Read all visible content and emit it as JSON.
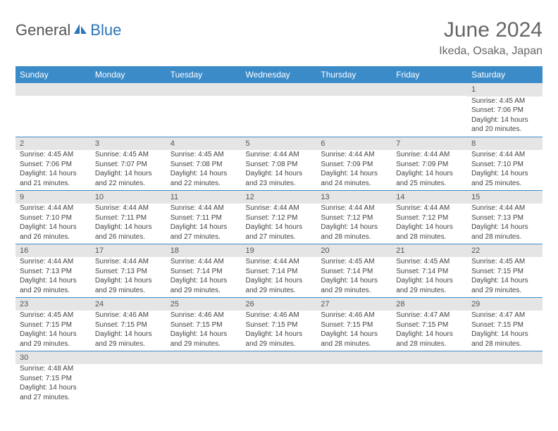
{
  "logo": {
    "part1": "General",
    "part2": "Blue"
  },
  "title": "June 2024",
  "location": "Ikeda, Osaka, Japan",
  "header_bg": "#3b8bc9",
  "daynum_bg": "#e5e5e5",
  "border_color": "#3b8bc9",
  "weekdays": [
    "Sunday",
    "Monday",
    "Tuesday",
    "Wednesday",
    "Thursday",
    "Friday",
    "Saturday"
  ],
  "weeks": [
    [
      null,
      null,
      null,
      null,
      null,
      null,
      {
        "n": 1,
        "sr": "4:45 AM",
        "ss": "7:06 PM",
        "dl": "14 hours and 20 minutes."
      }
    ],
    [
      {
        "n": 2,
        "sr": "4:45 AM",
        "ss": "7:06 PM",
        "dl": "14 hours and 21 minutes."
      },
      {
        "n": 3,
        "sr": "4:45 AM",
        "ss": "7:07 PM",
        "dl": "14 hours and 22 minutes."
      },
      {
        "n": 4,
        "sr": "4:45 AM",
        "ss": "7:08 PM",
        "dl": "14 hours and 22 minutes."
      },
      {
        "n": 5,
        "sr": "4:44 AM",
        "ss": "7:08 PM",
        "dl": "14 hours and 23 minutes."
      },
      {
        "n": 6,
        "sr": "4:44 AM",
        "ss": "7:09 PM",
        "dl": "14 hours and 24 minutes."
      },
      {
        "n": 7,
        "sr": "4:44 AM",
        "ss": "7:09 PM",
        "dl": "14 hours and 25 minutes."
      },
      {
        "n": 8,
        "sr": "4:44 AM",
        "ss": "7:10 PM",
        "dl": "14 hours and 25 minutes."
      }
    ],
    [
      {
        "n": 9,
        "sr": "4:44 AM",
        "ss": "7:10 PM",
        "dl": "14 hours and 26 minutes."
      },
      {
        "n": 10,
        "sr": "4:44 AM",
        "ss": "7:11 PM",
        "dl": "14 hours and 26 minutes."
      },
      {
        "n": 11,
        "sr": "4:44 AM",
        "ss": "7:11 PM",
        "dl": "14 hours and 27 minutes."
      },
      {
        "n": 12,
        "sr": "4:44 AM",
        "ss": "7:12 PM",
        "dl": "14 hours and 27 minutes."
      },
      {
        "n": 13,
        "sr": "4:44 AM",
        "ss": "7:12 PM",
        "dl": "14 hours and 28 minutes."
      },
      {
        "n": 14,
        "sr": "4:44 AM",
        "ss": "7:12 PM",
        "dl": "14 hours and 28 minutes."
      },
      {
        "n": 15,
        "sr": "4:44 AM",
        "ss": "7:13 PM",
        "dl": "14 hours and 28 minutes."
      }
    ],
    [
      {
        "n": 16,
        "sr": "4:44 AM",
        "ss": "7:13 PM",
        "dl": "14 hours and 29 minutes."
      },
      {
        "n": 17,
        "sr": "4:44 AM",
        "ss": "7:13 PM",
        "dl": "14 hours and 29 minutes."
      },
      {
        "n": 18,
        "sr": "4:44 AM",
        "ss": "7:14 PM",
        "dl": "14 hours and 29 minutes."
      },
      {
        "n": 19,
        "sr": "4:44 AM",
        "ss": "7:14 PM",
        "dl": "14 hours and 29 minutes."
      },
      {
        "n": 20,
        "sr": "4:45 AM",
        "ss": "7:14 PM",
        "dl": "14 hours and 29 minutes."
      },
      {
        "n": 21,
        "sr": "4:45 AM",
        "ss": "7:14 PM",
        "dl": "14 hours and 29 minutes."
      },
      {
        "n": 22,
        "sr": "4:45 AM",
        "ss": "7:15 PM",
        "dl": "14 hours and 29 minutes."
      }
    ],
    [
      {
        "n": 23,
        "sr": "4:45 AM",
        "ss": "7:15 PM",
        "dl": "14 hours and 29 minutes."
      },
      {
        "n": 24,
        "sr": "4:46 AM",
        "ss": "7:15 PM",
        "dl": "14 hours and 29 minutes."
      },
      {
        "n": 25,
        "sr": "4:46 AM",
        "ss": "7:15 PM",
        "dl": "14 hours and 29 minutes."
      },
      {
        "n": 26,
        "sr": "4:46 AM",
        "ss": "7:15 PM",
        "dl": "14 hours and 29 minutes."
      },
      {
        "n": 27,
        "sr": "4:46 AM",
        "ss": "7:15 PM",
        "dl": "14 hours and 28 minutes."
      },
      {
        "n": 28,
        "sr": "4:47 AM",
        "ss": "7:15 PM",
        "dl": "14 hours and 28 minutes."
      },
      {
        "n": 29,
        "sr": "4:47 AM",
        "ss": "7:15 PM",
        "dl": "14 hours and 28 minutes."
      }
    ],
    [
      {
        "n": 30,
        "sr": "4:48 AM",
        "ss": "7:15 PM",
        "dl": "14 hours and 27 minutes."
      },
      null,
      null,
      null,
      null,
      null,
      null
    ]
  ],
  "labels": {
    "sunrise": "Sunrise:",
    "sunset": "Sunset:",
    "daylight": "Daylight:"
  }
}
